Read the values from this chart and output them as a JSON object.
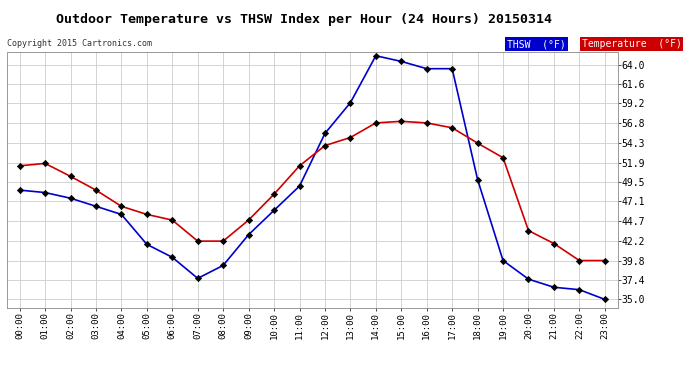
{
  "title": "Outdoor Temperature vs THSW Index per Hour (24 Hours) 20150314",
  "copyright": "Copyright 2015 Cartronics.com",
  "hours": [
    "00:00",
    "01:00",
    "02:00",
    "03:00",
    "04:00",
    "05:00",
    "06:00",
    "07:00",
    "08:00",
    "09:00",
    "10:00",
    "11:00",
    "12:00",
    "13:00",
    "14:00",
    "15:00",
    "16:00",
    "17:00",
    "18:00",
    "19:00",
    "20:00",
    "21:00",
    "22:00",
    "23:00"
  ],
  "thsw": [
    48.5,
    48.2,
    47.5,
    46.5,
    45.5,
    41.8,
    40.2,
    37.6,
    39.2,
    43.0,
    46.0,
    49.0,
    55.5,
    59.3,
    65.1,
    64.4,
    63.5,
    63.5,
    49.8,
    39.8,
    37.5,
    36.5,
    36.2,
    35.0
  ],
  "temperature": [
    51.5,
    51.8,
    50.2,
    48.5,
    46.5,
    45.5,
    44.8,
    42.2,
    42.2,
    44.8,
    48.0,
    51.5,
    54.0,
    55.0,
    56.8,
    57.0,
    56.8,
    56.2,
    54.3,
    52.5,
    43.5,
    41.9,
    39.8,
    39.8
  ],
  "thsw_color": "#0000cc",
  "temp_color": "#cc0000",
  "marker_color": "#000000",
  "bg_color": "#ffffff",
  "grid_color": "#cccccc",
  "ylim_min": 34.0,
  "ylim_max": 65.5,
  "yticks": [
    35.0,
    37.4,
    39.8,
    42.2,
    44.7,
    47.1,
    49.5,
    51.9,
    54.3,
    56.8,
    59.2,
    61.6,
    64.0
  ],
  "legend_thsw_label": "THSW  (°F)",
  "legend_temp_label": "Temperature  (°F)",
  "legend_thsw_bg": "#0000cc",
  "legend_temp_bg": "#cc0000",
  "legend_text_color": "#ffffff"
}
